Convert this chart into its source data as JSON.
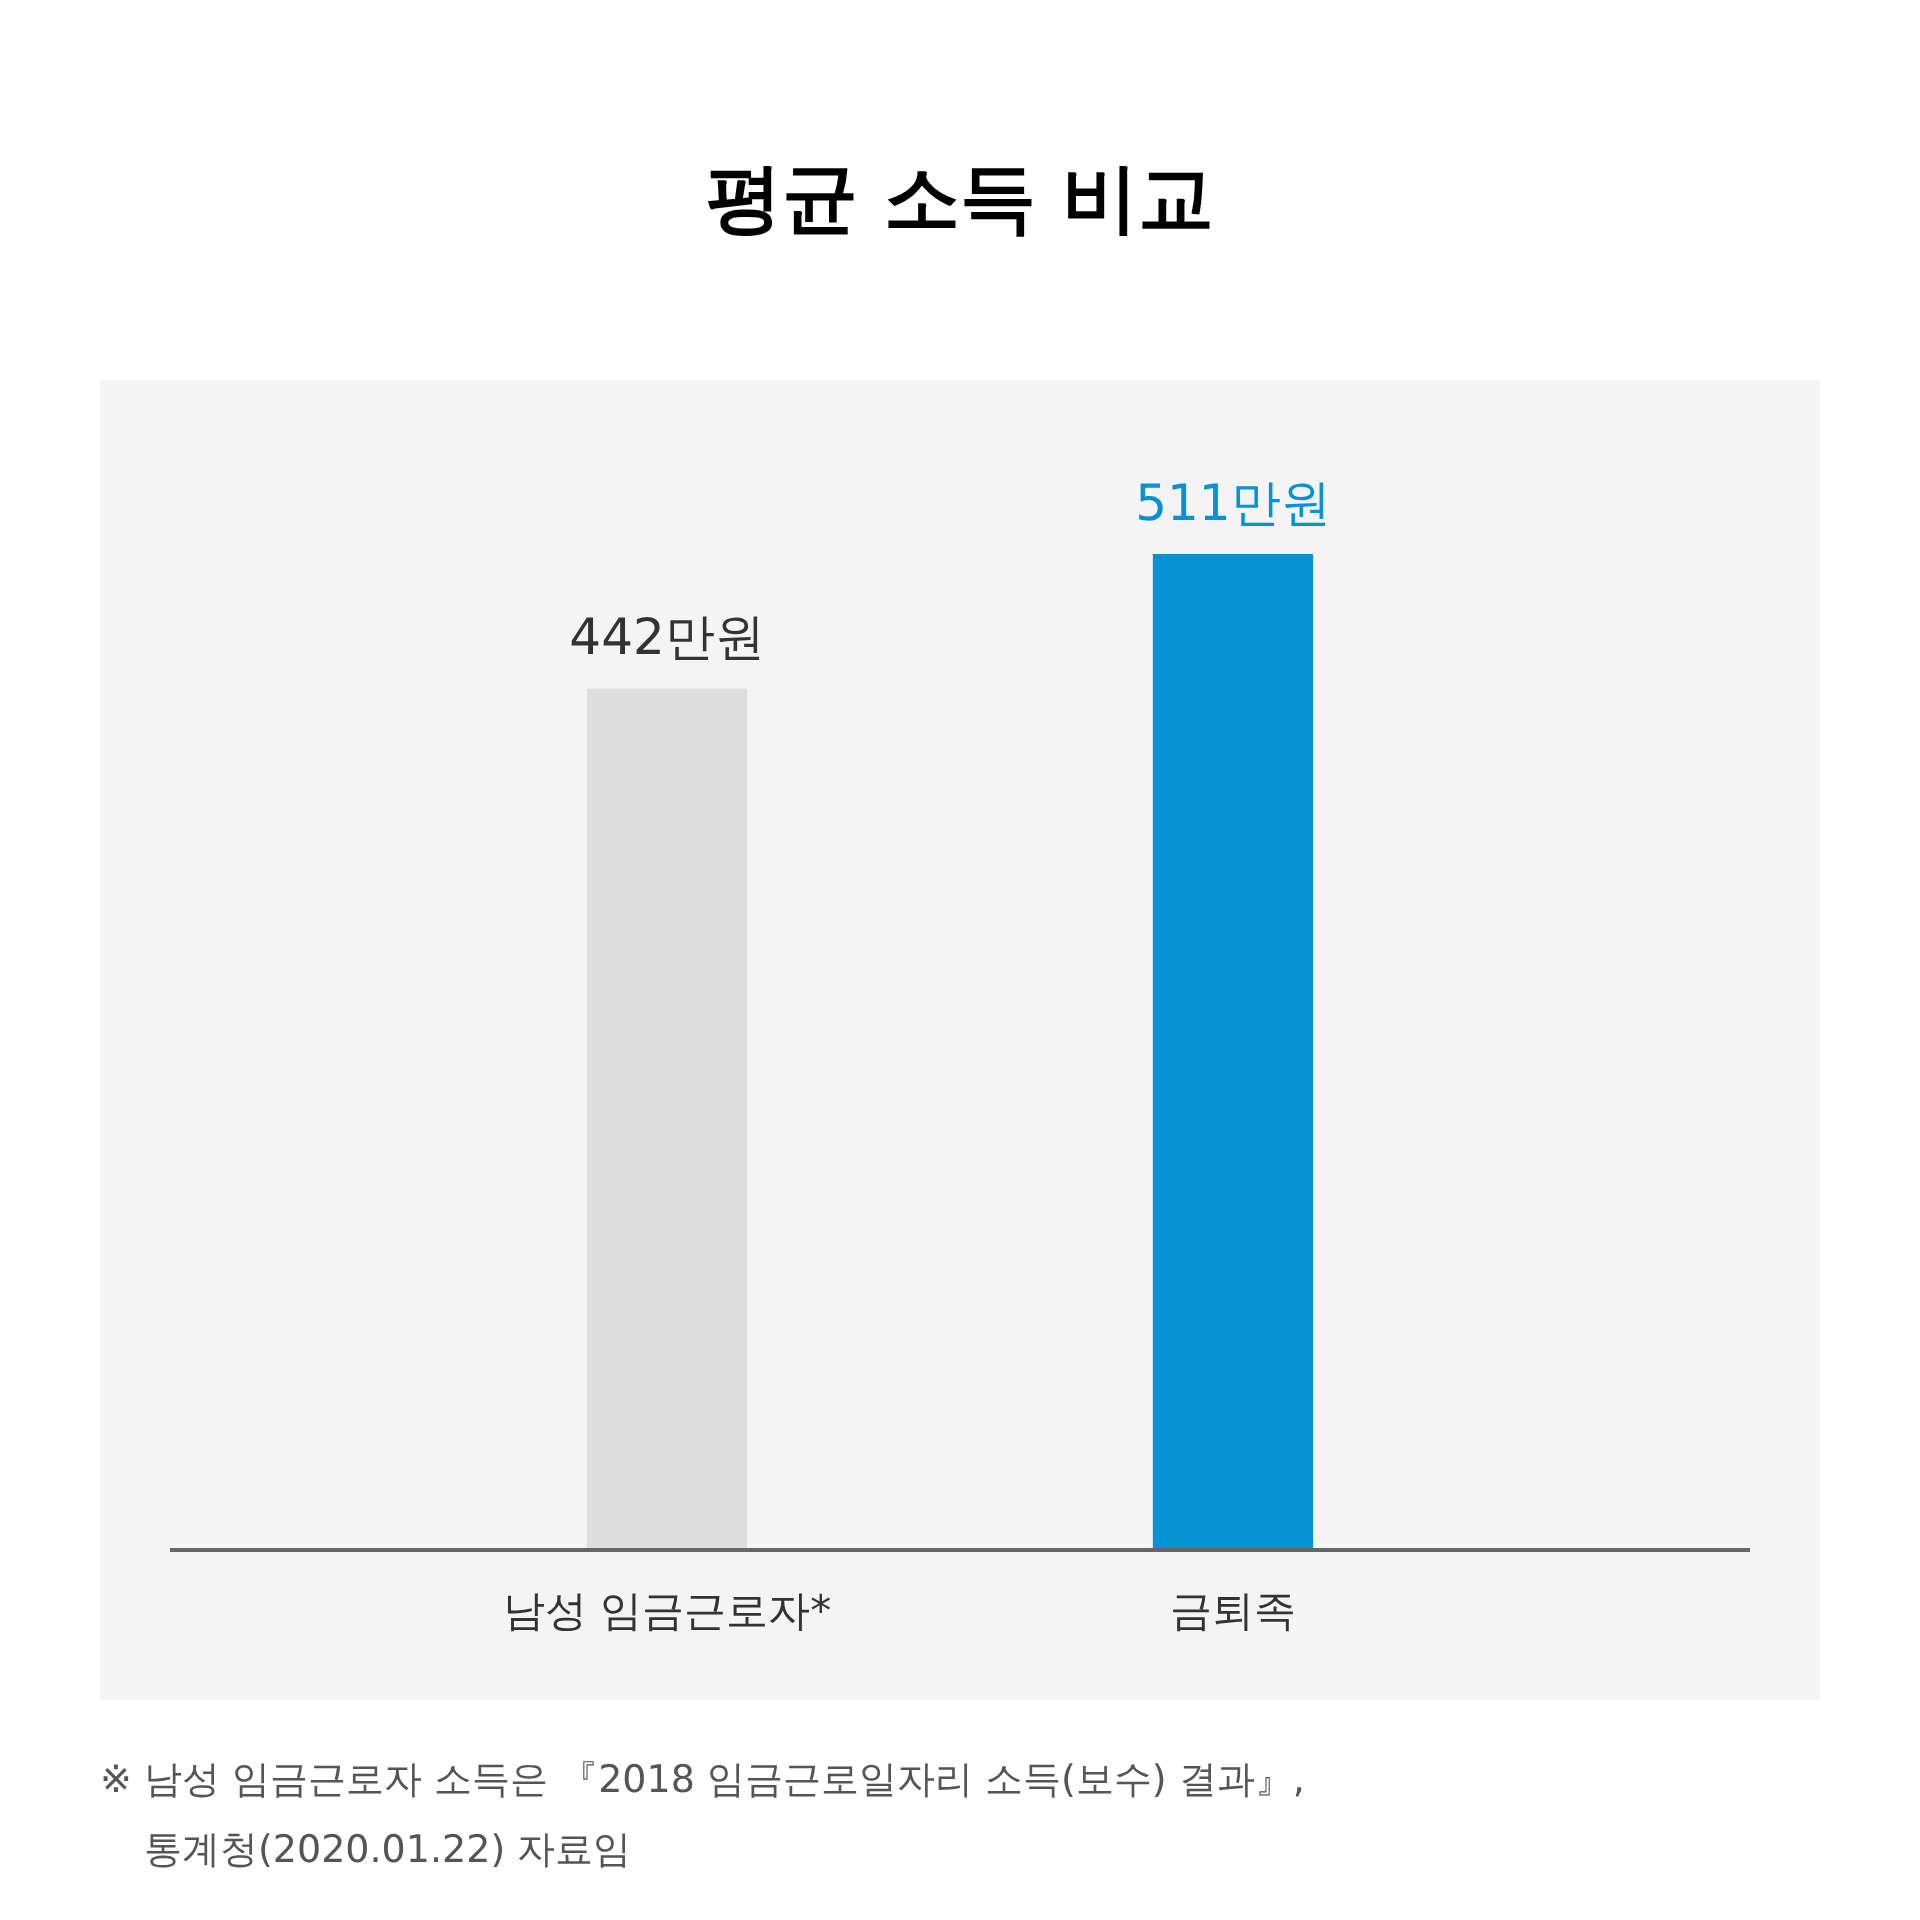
{
  "chart_data": {
    "type": "bar",
    "title": "평균 소득 비교",
    "categories": [
      "남성 임금근로자*",
      "금퇴족"
    ],
    "values": [
      442,
      511
    ],
    "colors": [
      "#dddddd",
      "#0693d4"
    ],
    "value_labels": [
      "442만원",
      "511만원"
    ],
    "annotations": [
      "※ 남성 임금근로자 소득은 『2018 임금근로일자리 소득(보수) 결과』,",
      "통계청(2020.01.22) 자료임"
    ]
  }
}
